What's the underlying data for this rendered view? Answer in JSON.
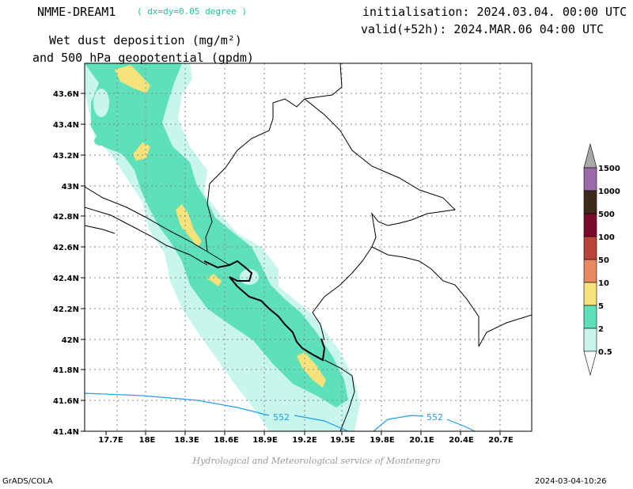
{
  "header": {
    "model": "NMME-DREAM1",
    "resolution": "( dx=dy=0.05 degree )",
    "initialisation": "initialisation: 2024.03.04. 00:00 UTC",
    "valid": "valid(+52h): 2024.MAR.06 04:00 UTC",
    "variable_line1": "Wet dust deposition (mg/m²)",
    "variable_line2": "and 500 hPa geopotential (gpdm)"
  },
  "map": {
    "lon_ticks": [
      "17.7E",
      "18E",
      "18.3E",
      "18.6E",
      "18.9E",
      "19.2E",
      "19.5E",
      "19.8E",
      "20.1E",
      "20.4E",
      "20.7E"
    ],
    "lat_ticks": [
      "43.6N",
      "43.4N",
      "43.2N",
      "43N",
      "42.8N",
      "42.6N",
      "42.4N",
      "42.2N",
      "42N",
      "41.8N",
      "41.6N",
      "41.4N"
    ],
    "contour_labels": [
      "552",
      "552"
    ],
    "contour_color": "#1e9ee8"
  },
  "legend": {
    "levels": [
      "1500",
      "1000",
      "500",
      "100",
      "50",
      "10",
      "5",
      "2",
      "0.5"
    ],
    "colors": [
      "#9c6aa8",
      "#3e2a18",
      "#7a0a2a",
      "#b8443a",
      "#e88860",
      "#f5e27a",
      "#5ee0b8",
      "#c8f5ec"
    ],
    "arrow_color": "#a8a8a8"
  },
  "footer": {
    "credit": "Hydrological and Meteorological service of Montenegro",
    "software": "GrADS/COLA",
    "timestamp": "2024-03-04-10:26"
  }
}
